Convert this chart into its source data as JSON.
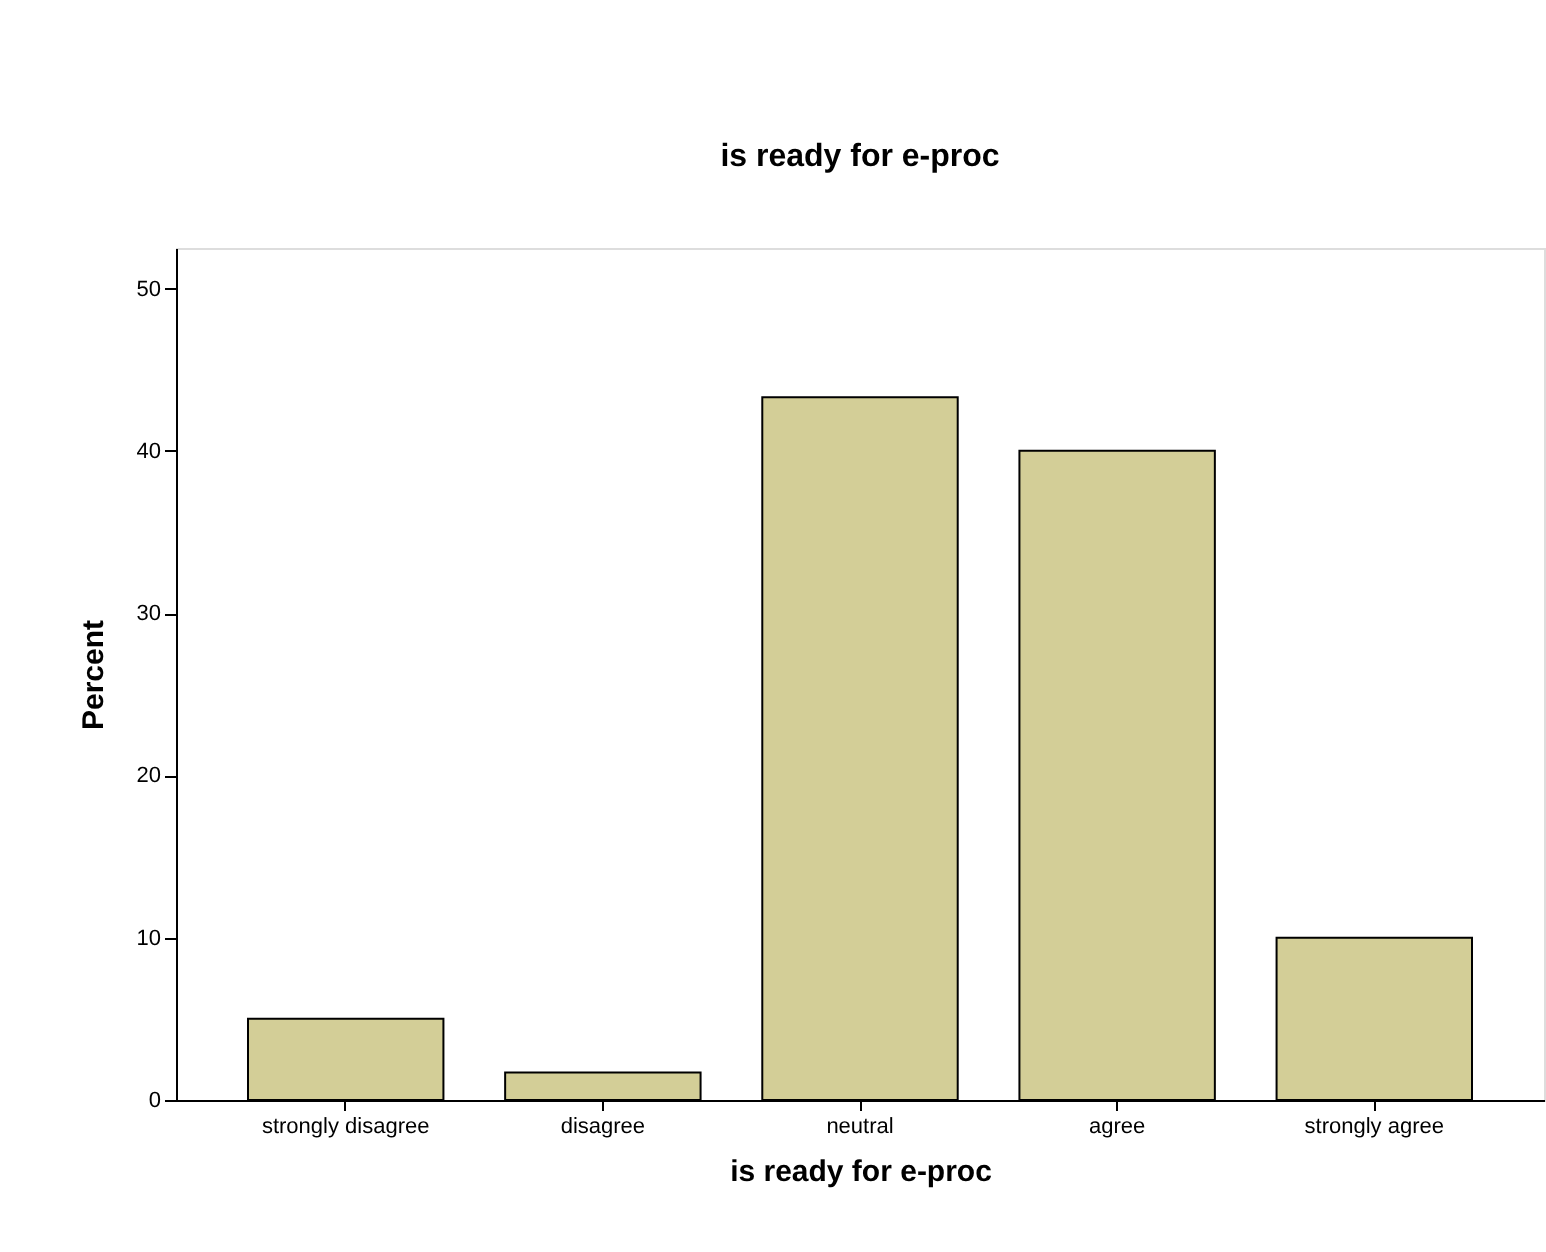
{
  "chart_data": {
    "type": "bar",
    "title": "is ready for e-proc",
    "xlabel": "is ready for e-proc",
    "ylabel": "Percent",
    "categories": [
      "strongly disagree",
      "disagree",
      "neutral",
      "agree",
      "strongly agree"
    ],
    "values": [
      5,
      1.7,
      43.3,
      40,
      10
    ],
    "color": "#d3ce97",
    "ylim": [
      0,
      52.5
    ],
    "yticks": [
      0,
      10,
      20,
      30,
      40,
      50
    ],
    "grid": false
  }
}
